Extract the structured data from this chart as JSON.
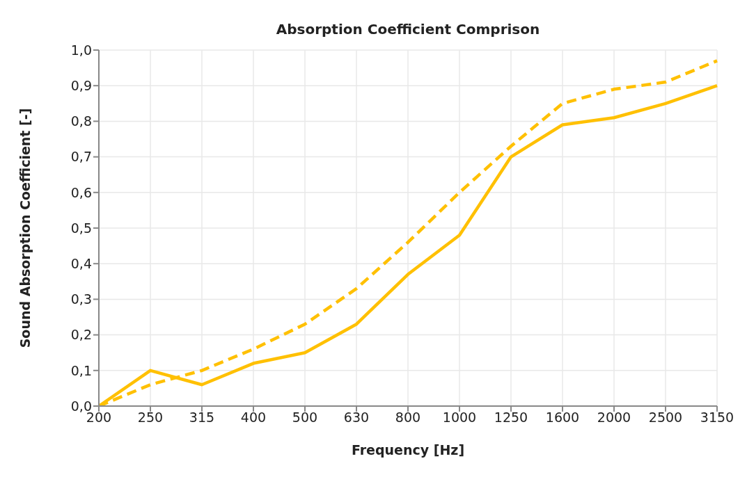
{
  "chart_data": {
    "type": "line",
    "title": "Absorption Coefficient Comprison",
    "xlabel": "Frequency [Hz]",
    "ylabel": "Sound Absorption Coefficient [-]",
    "categories": [
      "200",
      "250",
      "315",
      "400",
      "500",
      "630",
      "800",
      "1000",
      "1250",
      "1600",
      "2000",
      "2500",
      "3150"
    ],
    "series": [
      {
        "color": "#ffc000",
        "line_style": "solid",
        "values": [
          0.0,
          0.1,
          0.06,
          0.12,
          0.15,
          0.23,
          0.37,
          0.48,
          0.7,
          0.79,
          0.81,
          0.85,
          0.9
        ]
      },
      {
        "color": "#ffc000",
        "line_style": "dashed",
        "values": [
          0.0,
          0.06,
          0.1,
          0.16,
          0.23,
          0.33,
          0.46,
          0.6,
          0.73,
          0.85,
          0.89,
          0.91,
          0.97
        ]
      }
    ],
    "ylim": [
      0,
      1
    ],
    "yticks": [
      {
        "value": 0,
        "label": "0,0"
      },
      {
        "value": 0.1,
        "label": "0,1"
      },
      {
        "value": 0.2,
        "label": "0,2"
      },
      {
        "value": 0.3,
        "label": "0,3"
      },
      {
        "value": 0.4,
        "label": "0,4"
      },
      {
        "value": 0.5,
        "label": "0,5"
      },
      {
        "value": 0.6,
        "label": "0,6"
      },
      {
        "value": 0.7,
        "label": "0,7"
      },
      {
        "value": 0.8,
        "label": "0,8"
      },
      {
        "value": 0.9,
        "label": "0,9"
      },
      {
        "value": 1,
        "label": "1,0"
      }
    ],
    "grid": true,
    "legend": false
  }
}
